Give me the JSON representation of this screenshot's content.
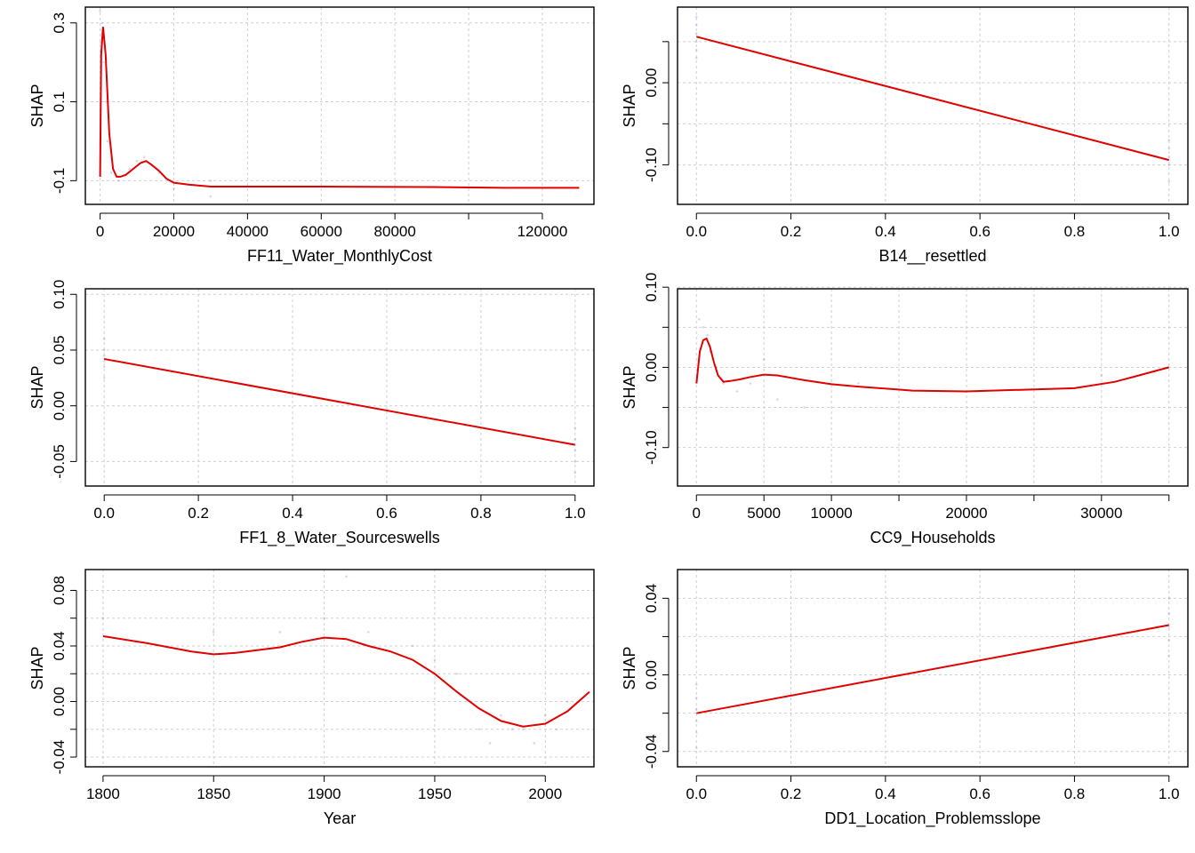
{
  "chart_data": [
    {
      "type": "line",
      "xlabel": "FF11_Water_MonthlyCost",
      "ylabel": "SHAP",
      "xlim": [
        -4000,
        134000
      ],
      "ylim": [
        -0.16,
        0.34
      ],
      "xticks": [
        0,
        20000,
        40000,
        60000,
        80000,
        100000,
        120000
      ],
      "xtick_labels": [
        "0",
        "20000",
        "40000",
        "60000",
        "80000",
        "",
        "120000"
      ],
      "yticks": [
        -0.1,
        0.1,
        0.3
      ],
      "ytick_labels": [
        "-0.1",
        "0.1",
        "0.3"
      ],
      "grid": true,
      "series": [
        {
          "color": "#e00000",
          "x": [
            0,
            300,
            800,
            1500,
            2500,
            3500,
            4500,
            5500,
            7000,
            9000,
            11000,
            12500,
            14000,
            16000,
            18000,
            20000,
            24000,
            30000,
            40000,
            60000,
            90000,
            110000,
            130000
          ],
          "y": [
            -0.09,
            0.22,
            0.29,
            0.22,
            0.02,
            -0.07,
            -0.09,
            -0.09,
            -0.085,
            -0.07,
            -0.055,
            -0.05,
            -0.06,
            -0.075,
            -0.095,
            -0.105,
            -0.11,
            -0.115,
            -0.115,
            -0.115,
            -0.116,
            -0.118,
            -0.118
          ]
        }
      ],
      "scatter": {
        "x": [
          0,
          200,
          500,
          800,
          1000,
          1500,
          2000,
          3000,
          5000,
          8000,
          10000,
          12000,
          14000,
          16000,
          20000,
          24000,
          30000,
          30000
        ],
        "y": [
          0.33,
          0.25,
          0.3,
          0.28,
          0.2,
          0.1,
          0.0,
          -0.08,
          -0.1,
          -0.07,
          -0.05,
          -0.04,
          -0.06,
          -0.08,
          -0.12,
          -0.11,
          -0.1,
          -0.14
        ]
      }
    },
    {
      "type": "line",
      "xlabel": "B14__resettled",
      "ylabel": "SHAP",
      "xlim": [
        -0.04,
        1.04
      ],
      "ylim": [
        -0.148,
        0.092
      ],
      "xticks": [
        0,
        0.2,
        0.4,
        0.6,
        0.8,
        1.0
      ],
      "xtick_labels": [
        "0.0",
        "0.2",
        "0.4",
        "0.6",
        "0.8",
        "1.0"
      ],
      "yticks": [
        -0.1,
        -0.05,
        0.0,
        0.05
      ],
      "ytick_labels": [
        "-0.10",
        "",
        "0.00",
        ""
      ],
      "grid": true,
      "series": [
        {
          "color": "#e00000",
          "x": [
            0,
            1
          ],
          "y": [
            0.056,
            -0.094
          ]
        }
      ],
      "scatter": {
        "x": [
          0,
          0,
          0,
          0,
          0,
          0,
          1,
          1,
          1,
          1,
          1
        ],
        "y": [
          0.08,
          0.07,
          0.06,
          0.05,
          0.04,
          0.03,
          -0.07,
          -0.08,
          -0.09,
          -0.1,
          -0.12
        ]
      }
    },
    {
      "type": "line",
      "xlabel": "FF1_8_Water_Sourceswells",
      "ylabel": "SHAP",
      "xlim": [
        -0.04,
        1.04
      ],
      "ylim": [
        -0.072,
        0.105
      ],
      "xticks": [
        0,
        0.2,
        0.4,
        0.6,
        0.8,
        1.0
      ],
      "xtick_labels": [
        "0.0",
        "0.2",
        "0.4",
        "0.6",
        "0.8",
        "1.0"
      ],
      "yticks": [
        -0.05,
        0.0,
        0.05,
        0.1
      ],
      "ytick_labels": [
        "-0.05",
        "0.00",
        "0.05",
        "0.10"
      ],
      "grid": true,
      "series": [
        {
          "color": "#e00000",
          "x": [
            0,
            1
          ],
          "y": [
            0.042,
            -0.035
          ]
        }
      ],
      "scatter": {
        "x": [
          0,
          0,
          0,
          0,
          0,
          0,
          1,
          1,
          1,
          1,
          1
        ],
        "y": [
          0.06,
          0.05,
          0.045,
          0.04,
          0.035,
          0.025,
          -0.02,
          -0.03,
          -0.04,
          -0.05,
          -0.06
        ]
      }
    },
    {
      "type": "line",
      "xlabel": "CC9_Households",
      "ylabel": "SHAP",
      "xlim": [
        -1400,
        36400
      ],
      "ylim": [
        -0.148,
        0.098
      ],
      "xticks": [
        0,
        5000,
        10000,
        15000,
        20000,
        25000,
        30000,
        35000
      ],
      "xtick_labels": [
        "0",
        "5000",
        "10000",
        "",
        "20000",
        "",
        "30000",
        ""
      ],
      "yticks": [
        -0.1,
        -0.05,
        0.0,
        0.05,
        0.1
      ],
      "ytick_labels": [
        "-0.10",
        "",
        "0.00",
        "",
        "0.10"
      ],
      "grid": true,
      "series": [
        {
          "color": "#e00000",
          "x": [
            0,
            250,
            500,
            750,
            1000,
            1300,
            1600,
            2000,
            2500,
            3200,
            4000,
            5000,
            6000,
            8000,
            10000,
            12000,
            16000,
            20000,
            24000,
            28000,
            31000,
            35000
          ],
          "y": [
            -0.02,
            0.02,
            0.034,
            0.036,
            0.026,
            0.006,
            -0.01,
            -0.018,
            -0.017,
            -0.015,
            -0.012,
            -0.009,
            -0.01,
            -0.016,
            -0.021,
            -0.024,
            -0.029,
            -0.03,
            -0.028,
            -0.026,
            -0.018,
            0.0
          ]
        }
      ],
      "scatter": {
        "x": [
          200,
          500,
          800,
          1000,
          1500,
          2000,
          3000,
          4000,
          5000,
          6000,
          8000,
          12000,
          20000,
          30000
        ],
        "y": [
          0.06,
          0.05,
          0.04,
          0.02,
          0.0,
          -0.02,
          -0.03,
          -0.02,
          0.01,
          -0.04,
          -0.05,
          -0.02,
          -0.03,
          -0.01
        ]
      }
    },
    {
      "type": "line",
      "xlabel": "Year",
      "ylabel": "SHAP",
      "xlim": [
        1792,
        2022
      ],
      "ylim": [
        -0.047,
        0.095
      ],
      "xticks": [
        1800,
        1850,
        1900,
        1950,
        2000
      ],
      "xtick_labels": [
        "1800",
        "1850",
        "1900",
        "1950",
        "2000"
      ],
      "yticks": [
        -0.04,
        -0.02,
        0.0,
        0.02,
        0.04,
        0.06,
        0.08
      ],
      "ytick_labels": [
        "-0.04",
        "",
        "0.00",
        "",
        "0.04",
        "",
        "0.08"
      ],
      "grid": true,
      "series": [
        {
          "color": "#e00000",
          "x": [
            1800,
            1820,
            1840,
            1850,
            1860,
            1880,
            1890,
            1900,
            1910,
            1920,
            1930,
            1940,
            1950,
            1960,
            1970,
            1980,
            1990,
            2000,
            2010,
            2020
          ],
          "y": [
            0.047,
            0.042,
            0.036,
            0.034,
            0.035,
            0.039,
            0.043,
            0.046,
            0.045,
            0.04,
            0.036,
            0.03,
            0.02,
            0.007,
            -0.005,
            -0.014,
            -0.018,
            -0.016,
            -0.007,
            0.007
          ]
        }
      ],
      "scatter": {
        "x": [
          1800,
          1850,
          1880,
          1900,
          1910,
          1920,
          1940,
          1950,
          1960,
          1970,
          1975,
          1980,
          1985,
          1990,
          1995,
          2000,
          2005,
          2010,
          2015
        ],
        "y": [
          0.06,
          0.05,
          0.05,
          0.06,
          0.09,
          0.05,
          0.04,
          0.03,
          0.02,
          -0.02,
          -0.03,
          -0.01,
          -0.02,
          -0.02,
          -0.03,
          -0.01,
          -0.02,
          0.0,
          0.0
        ]
      }
    },
    {
      "type": "line",
      "xlabel": "DD1_Location_Problemsslope",
      "ylabel": "SHAP",
      "xlim": [
        -0.04,
        1.04
      ],
      "ylim": [
        -0.048,
        0.055
      ],
      "xticks": [
        0,
        0.2,
        0.4,
        0.6,
        0.8,
        1.0
      ],
      "xtick_labels": [
        "0.0",
        "0.2",
        "0.4",
        "0.6",
        "0.8",
        "1.0"
      ],
      "yticks": [
        -0.04,
        -0.02,
        0.0,
        0.02,
        0.04
      ],
      "ytick_labels": [
        "-0.04",
        "",
        "0.00",
        "",
        "0.04"
      ],
      "grid": true,
      "series": [
        {
          "color": "#e00000",
          "x": [
            0,
            1
          ],
          "y": [
            -0.02,
            0.026
          ]
        }
      ],
      "scatter": {
        "x": [
          0,
          0,
          0,
          0,
          0,
          0,
          1,
          1,
          1,
          1,
          1
        ],
        "y": [
          -0.005,
          -0.012,
          -0.018,
          -0.024,
          -0.03,
          -0.038,
          0.04,
          0.032,
          0.025,
          0.018,
          0.01
        ]
      }
    }
  ]
}
